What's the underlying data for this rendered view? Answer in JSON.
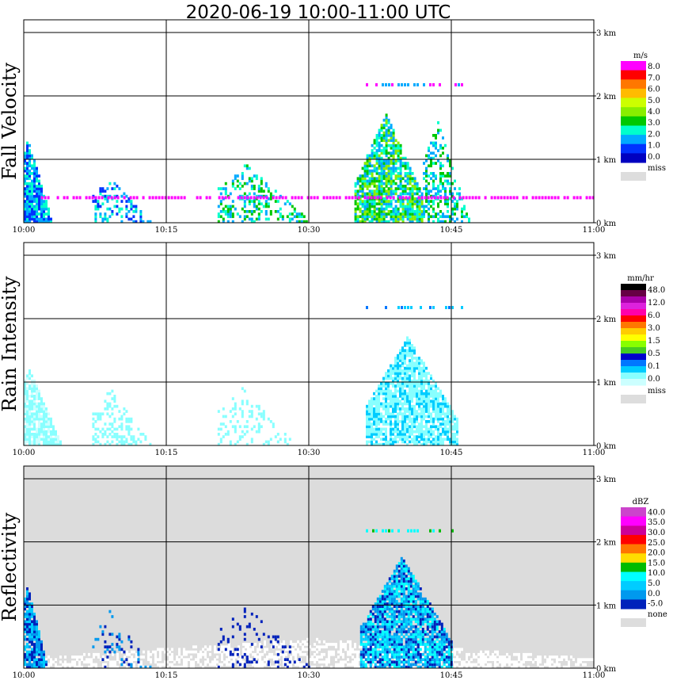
{
  "title": "2020-06-19   10:00-11:00 UTC",
  "chart_data": [
    {
      "type": "heatmap",
      "panel": "fall-velocity",
      "ylabel": "Fall Velocity",
      "x_ticks": [
        "10:00",
        "10:15",
        "10:30",
        "10:45",
        "11:00"
      ],
      "y_ticks": [
        "0 km",
        "1 km",
        "2 km",
        "3 km"
      ],
      "ylim": [
        0,
        3.2
      ],
      "background": "#ffffff",
      "colorbar": {
        "unit": "m/s",
        "labels": [
          "8.0",
          "7.0",
          "6.0",
          "5.0",
          "4.0",
          "3.0",
          "2.0",
          "1.0",
          "0.0",
          "miss"
        ],
        "colors": [
          "#ff00ff",
          "#ff0000",
          "#ff7700",
          "#ffbb00",
          "#ccff00",
          "#88ee00",
          "#00c800",
          "#00ffcc",
          "#00aaff",
          "#0033ff",
          "#0000c0",
          "#dddddd"
        ]
      }
    },
    {
      "type": "heatmap",
      "panel": "rain-intensity",
      "ylabel": "Rain Intensity",
      "x_ticks": [
        "10:00",
        "10:15",
        "10:30",
        "10:45",
        "11:00"
      ],
      "y_ticks": [
        "0 km",
        "1 km",
        "2 km",
        "3 km"
      ],
      "ylim": [
        0,
        3.2
      ],
      "background": "#ffffff",
      "colorbar": {
        "unit": "mm/hr",
        "labels": [
          "48.0",
          "12.0",
          "6.0",
          "3.0",
          "1.5",
          "0.5",
          "0.1",
          "0.0",
          "miss"
        ],
        "colors": [
          "#000000",
          "#660044",
          "#aa00aa",
          "#dd22dd",
          "#ff00aa",
          "#ff0000",
          "#ff7700",
          "#ffcc00",
          "#ffff00",
          "#88ff00",
          "#44cc22",
          "#0000cc",
          "#0077ff",
          "#00ccff",
          "#88ffff",
          "#ccffff",
          "#dddddd"
        ]
      }
    },
    {
      "type": "heatmap",
      "panel": "reflectivity",
      "ylabel": "Reflectivity",
      "x_ticks": [
        "10:00",
        "10:15",
        "10:30",
        "10:45",
        "11:00"
      ],
      "y_ticks": [
        "0 km",
        "1 km",
        "2 km",
        "3 km"
      ],
      "ylim": [
        0,
        3.2
      ],
      "background": "#dcdcdc",
      "colorbar": {
        "unit": "dBZ",
        "labels": [
          "40.0",
          "35.0",
          "30.0",
          "25.0",
          "20.0",
          "15.0",
          "10.0",
          "5.0",
          "0.0",
          "-5.0",
          "none"
        ],
        "colors": [
          "#cc44cc",
          "#ff00ff",
          "#cc0099",
          "#ff0000",
          "#ff7700",
          "#ffdd00",
          "#00bb00",
          "#00ffff",
          "#00ccff",
          "#0099ee",
          "#0022bb",
          "#dddddd"
        ]
      }
    }
  ]
}
